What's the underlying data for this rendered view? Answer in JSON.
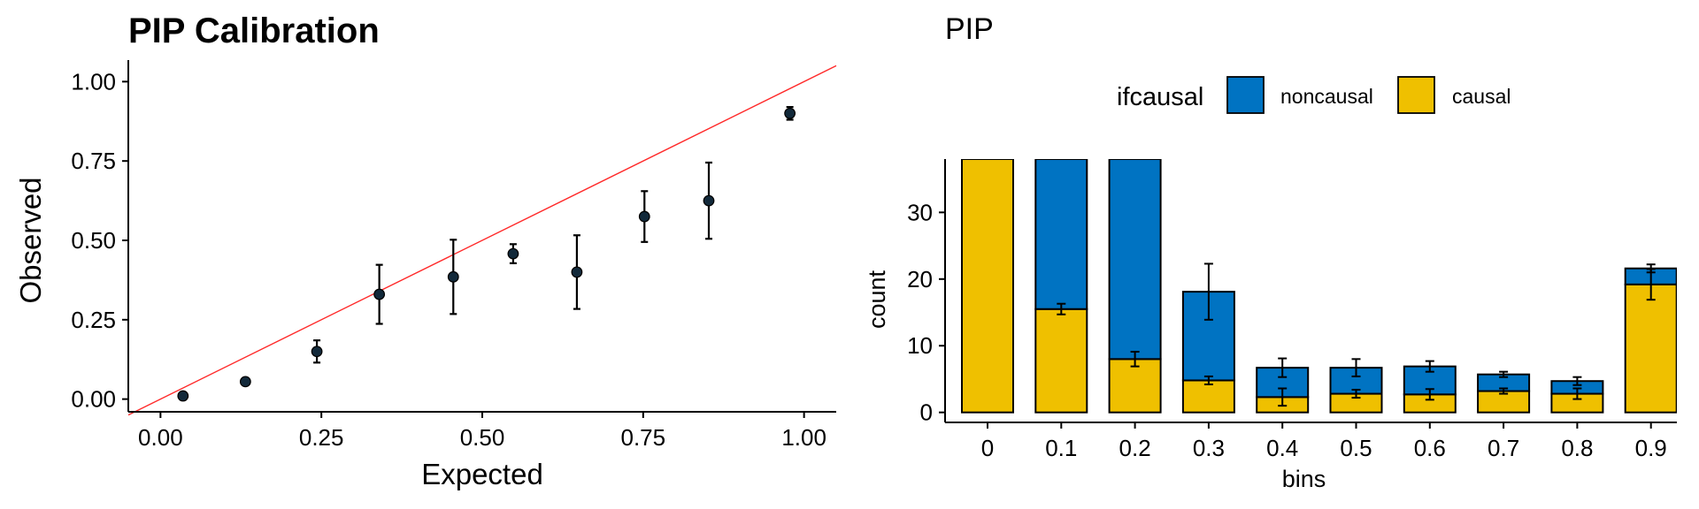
{
  "chart_data": [
    {
      "type": "scatter",
      "title": "PIP Calibration",
      "xlabel": "Expected",
      "ylabel": "Observed",
      "xlim": [
        -0.05,
        1.05
      ],
      "ylim": [
        -0.04,
        1.04
      ],
      "xticks": [
        "0.00",
        "0.25",
        "0.50",
        "0.75",
        "1.00"
      ],
      "yticks": [
        "0.00",
        "0.25",
        "0.50",
        "0.75",
        "1.00"
      ],
      "reference_line": {
        "slope": 1,
        "intercept": 0,
        "color": "#ff2a2a"
      },
      "point_color": "#12293a",
      "points": [
        {
          "x": 0.035,
          "y": 0.01,
          "err": 0.0
        },
        {
          "x": 0.132,
          "y": 0.055,
          "err": 0.0
        },
        {
          "x": 0.243,
          "y": 0.15,
          "err": 0.035
        },
        {
          "x": 0.34,
          "y": 0.33,
          "err": 0.093
        },
        {
          "x": 0.455,
          "y": 0.385,
          "err": 0.117
        },
        {
          "x": 0.548,
          "y": 0.458,
          "err": 0.03
        },
        {
          "x": 0.647,
          "y": 0.4,
          "err": 0.116
        },
        {
          "x": 0.752,
          "y": 0.575,
          "err": 0.08
        },
        {
          "x": 0.852,
          "y": 0.625,
          "err": 0.12
        },
        {
          "x": 0.978,
          "y": 0.9,
          "err": 0.02
        }
      ]
    },
    {
      "type": "bar",
      "stacked": true,
      "title": "PIP",
      "xlabel": "bins",
      "ylabel": "count",
      "ylim": [
        -1.5,
        38
      ],
      "yticks": [
        "0",
        "10",
        "20",
        "30"
      ],
      "categories": [
        "0",
        "0.1",
        "0.2",
        "0.3",
        "0.4",
        "0.5",
        "0.6",
        "0.7",
        "0.8",
        "0.9"
      ],
      "legend": {
        "title": "ifcausal",
        "position": "top"
      },
      "series": [
        {
          "name": "causal",
          "color": "#efc000",
          "values": [
            38,
            15.5,
            8,
            4.8,
            2.3,
            2.8,
            2.7,
            3.2,
            2.8,
            19.2
          ],
          "err": [
            0,
            0.8,
            1.1,
            0.6,
            1.3,
            0.6,
            0.8,
            0.4,
            0.8,
            2.3
          ]
        },
        {
          "name": "noncausal",
          "color": "#0073c2",
          "values": [
            0,
            22.5,
            30,
            13.3,
            4.4,
            3.9,
            4.2,
            2.5,
            1.9,
            2.4
          ],
          "err": [
            0,
            0,
            0,
            4.2,
            1.4,
            1.3,
            0.8,
            0.4,
            0.6,
            0.6
          ]
        }
      ]
    }
  ]
}
